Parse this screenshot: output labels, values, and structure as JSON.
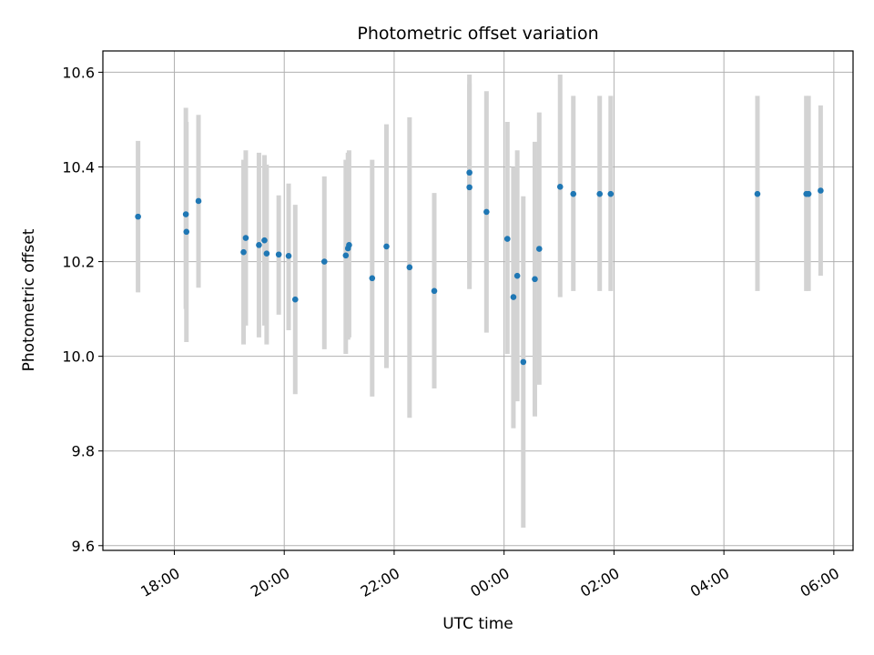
{
  "chart_data": {
    "type": "scatter",
    "title": "Photometric offset variation",
    "xlabel": "UTC time",
    "ylabel": "Photometric offset",
    "grid": true,
    "x_unit": "hours relative to 00:00 UTC",
    "xlim": [
      -7.3,
      6.35
    ],
    "ylim": [
      9.59,
      10.645
    ],
    "xticks": [
      {
        "value": -6,
        "label": "18:00"
      },
      {
        "value": -4,
        "label": "20:00"
      },
      {
        "value": -2,
        "label": "22:00"
      },
      {
        "value": 0,
        "label": "00:00"
      },
      {
        "value": 2,
        "label": "02:00"
      },
      {
        "value": 4,
        "label": "04:00"
      },
      {
        "value": 6,
        "label": "06:00"
      }
    ],
    "yticks": [
      {
        "value": 9.6,
        "label": "9.6"
      },
      {
        "value": 9.8,
        "label": "9.8"
      },
      {
        "value": 10.0,
        "label": "10.0"
      },
      {
        "value": 10.2,
        "label": "10.2"
      },
      {
        "value": 10.4,
        "label": "10.4"
      },
      {
        "value": 10.6,
        "label": "10.6"
      }
    ],
    "series": [
      {
        "name": "Photometric offset",
        "marker_color": "#1f77b4",
        "errorbar_color": "#d3d3d3",
        "points": [
          {
            "x": -6.66,
            "y": 10.295,
            "lo": 10.135,
            "hi": 10.455
          },
          {
            "x": -5.79,
            "y": 10.3,
            "lo": 10.1,
            "hi": 10.525
          },
          {
            "x": -5.78,
            "y": 10.263,
            "lo": 10.03,
            "hi": 10.495
          },
          {
            "x": -5.56,
            "y": 10.328,
            "lo": 10.145,
            "hi": 10.51
          },
          {
            "x": -4.74,
            "y": 10.22,
            "lo": 10.025,
            "hi": 10.415
          },
          {
            "x": -4.7,
            "y": 10.25,
            "lo": 10.065,
            "hi": 10.435
          },
          {
            "x": -4.46,
            "y": 10.235,
            "lo": 10.04,
            "hi": 10.43
          },
          {
            "x": -4.36,
            "y": 10.245,
            "lo": 10.065,
            "hi": 10.425
          },
          {
            "x": -4.32,
            "y": 10.217,
            "lo": 10.025,
            "hi": 10.405
          },
          {
            "x": -4.1,
            "y": 10.215,
            "lo": 10.088,
            "hi": 10.34
          },
          {
            "x": -3.92,
            "y": 10.212,
            "lo": 10.055,
            "hi": 10.365
          },
          {
            "x": -3.8,
            "y": 10.12,
            "lo": 9.92,
            "hi": 10.32
          },
          {
            "x": -3.27,
            "y": 10.2,
            "lo": 10.015,
            "hi": 10.38
          },
          {
            "x": -2.88,
            "y": 10.213,
            "lo": 10.005,
            "hi": 10.415
          },
          {
            "x": -2.84,
            "y": 10.228,
            "lo": 10.035,
            "hi": 10.43
          },
          {
            "x": -2.82,
            "y": 10.235,
            "lo": 10.04,
            "hi": 10.435
          },
          {
            "x": -2.4,
            "y": 10.165,
            "lo": 9.915,
            "hi": 10.415
          },
          {
            "x": -2.14,
            "y": 10.232,
            "lo": 9.975,
            "hi": 10.49
          },
          {
            "x": -1.72,
            "y": 10.188,
            "lo": 9.87,
            "hi": 10.505
          },
          {
            "x": -1.27,
            "y": 10.138,
            "lo": 9.932,
            "hi": 10.345
          },
          {
            "x": -0.63,
            "y": 10.388,
            "lo": 10.185,
            "hi": 10.595
          },
          {
            "x": -0.63,
            "y": 10.357,
            "lo": 10.142,
            "hi": 10.575
          },
          {
            "x": -0.32,
            "y": 10.305,
            "lo": 10.05,
            "hi": 10.56
          },
          {
            "x": 0.06,
            "y": 10.248,
            "lo": 10.005,
            "hi": 10.495
          },
          {
            "x": 0.17,
            "y": 10.125,
            "lo": 9.848,
            "hi": 10.4
          },
          {
            "x": 0.24,
            "y": 10.17,
            "lo": 9.905,
            "hi": 10.435
          },
          {
            "x": 0.35,
            "y": 9.988,
            "lo": 9.638,
            "hi": 10.338
          },
          {
            "x": 0.56,
            "y": 10.163,
            "lo": 9.873,
            "hi": 10.453
          },
          {
            "x": 0.64,
            "y": 10.227,
            "lo": 9.94,
            "hi": 10.515
          },
          {
            "x": 1.02,
            "y": 10.358,
            "lo": 10.125,
            "hi": 10.595
          },
          {
            "x": 1.26,
            "y": 10.343,
            "lo": 10.138,
            "hi": 10.55
          },
          {
            "x": 1.74,
            "y": 10.343,
            "lo": 10.138,
            "hi": 10.55
          },
          {
            "x": 1.94,
            "y": 10.343,
            "lo": 10.138,
            "hi": 10.55
          },
          {
            "x": 4.61,
            "y": 10.343,
            "lo": 10.138,
            "hi": 10.55
          },
          {
            "x": 5.5,
            "y": 10.343,
            "lo": 10.138,
            "hi": 10.55
          },
          {
            "x": 5.54,
            "y": 10.343,
            "lo": 10.138,
            "hi": 10.55
          },
          {
            "x": 5.76,
            "y": 10.35,
            "lo": 10.17,
            "hi": 10.53
          }
        ]
      }
    ]
  }
}
